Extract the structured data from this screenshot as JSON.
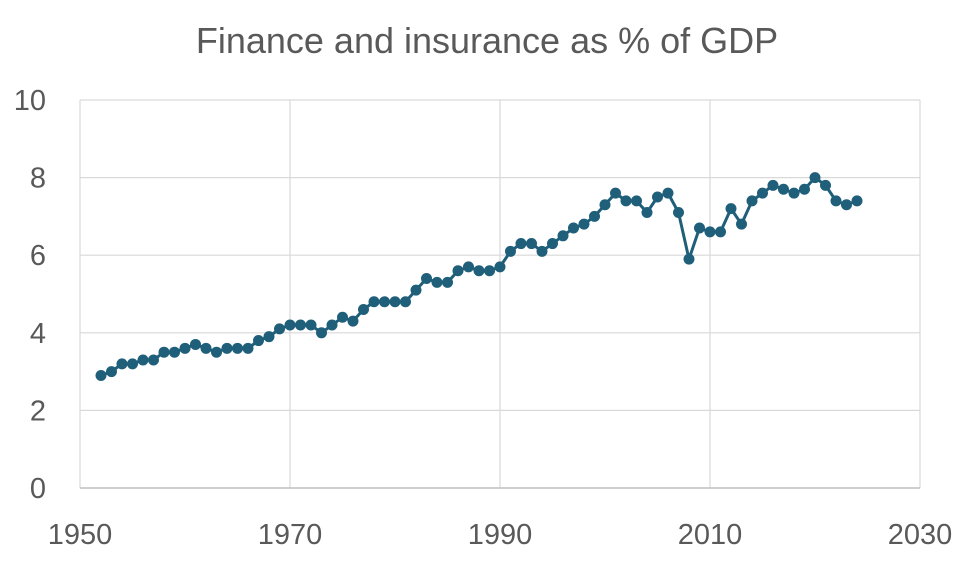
{
  "chart_data": {
    "type": "scatter",
    "mode": "lines+markers",
    "title": "Finance and insurance as % of GDP",
    "xlabel": "",
    "ylabel": "",
    "xlim": [
      1950,
      2030
    ],
    "ylim": [
      0,
      10
    ],
    "x_ticks": [
      1950,
      1970,
      1990,
      2010,
      2030
    ],
    "y_ticks": [
      0,
      2,
      4,
      6,
      8,
      10
    ],
    "grid": true,
    "legend": "none",
    "color": "#1f5f7a",
    "series": [
      {
        "x": [
          1952,
          1953,
          1954,
          1955,
          1956,
          1957,
          1958,
          1959,
          1960,
          1961,
          1962,
          1963,
          1964,
          1965,
          1966,
          1967,
          1968,
          1969,
          1970,
          1971,
          1972,
          1973,
          1974,
          1975,
          1976,
          1977,
          1978,
          1979,
          1980,
          1981,
          1982,
          1983,
          1984,
          1985,
          1986,
          1987,
          1988,
          1989,
          1990,
          1991,
          1992,
          1993,
          1994,
          1995,
          1996,
          1997,
          1998,
          1999,
          2000,
          2001,
          2002,
          2003,
          2004,
          2005,
          2006,
          2007,
          2008,
          2009,
          2010,
          2011,
          2012,
          2013,
          2014,
          2015,
          2016,
          2017,
          2018,
          2019,
          2020,
          2021,
          2022,
          2023,
          2024
        ],
        "y": [
          2.9,
          3.0,
          3.2,
          3.2,
          3.3,
          3.3,
          3.5,
          3.5,
          3.6,
          3.7,
          3.6,
          3.5,
          3.6,
          3.6,
          3.6,
          3.8,
          3.9,
          4.1,
          4.2,
          4.2,
          4.2,
          4.0,
          4.2,
          4.4,
          4.3,
          4.6,
          4.8,
          4.8,
          4.8,
          4.8,
          5.1,
          5.4,
          5.3,
          5.3,
          5.6,
          5.7,
          5.6,
          5.6,
          5.7,
          6.1,
          6.3,
          6.3,
          6.1,
          6.3,
          6.5,
          6.7,
          6.8,
          7.0,
          7.3,
          7.6,
          7.4,
          7.4,
          7.1,
          7.5,
          7.6,
          7.1,
          5.9,
          6.7,
          6.6,
          6.6,
          7.2,
          6.8,
          7.4,
          7.6,
          7.8,
          7.7,
          7.6,
          7.7,
          8.0,
          7.8,
          7.4,
          7.3,
          7.4
        ]
      }
    ]
  }
}
